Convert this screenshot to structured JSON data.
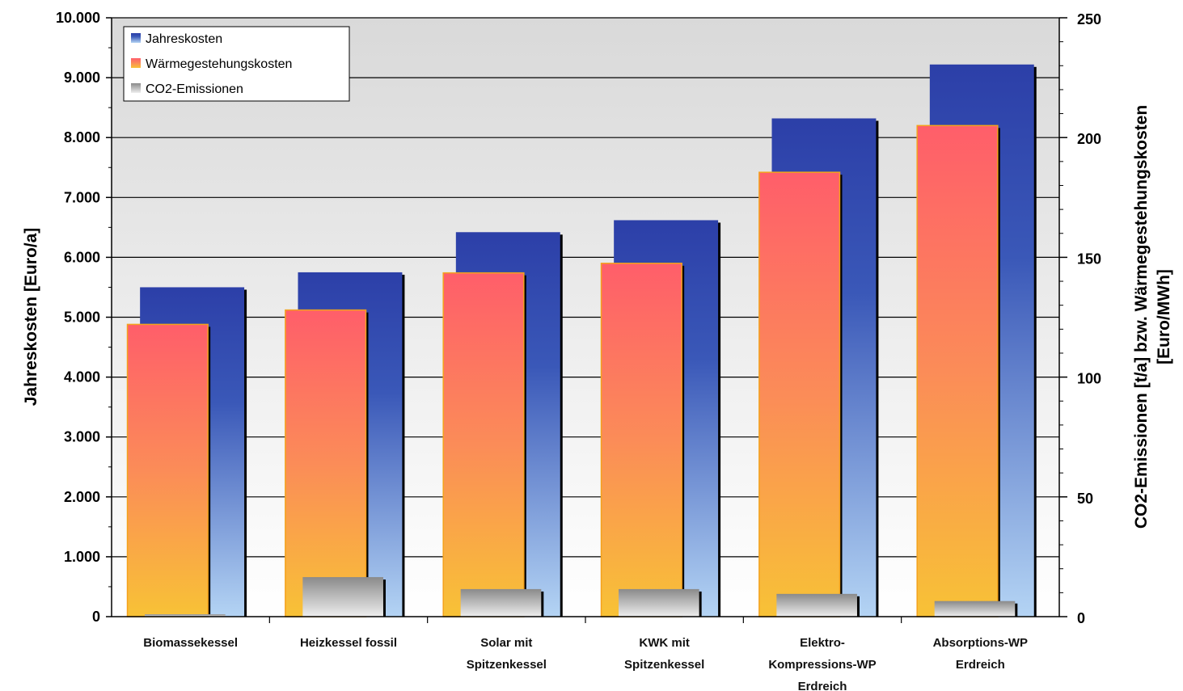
{
  "chart_data": {
    "type": "bar",
    "categories": [
      [
        "Biomassekessel"
      ],
      [
        "Heizkessel fossil"
      ],
      [
        "Solar mit",
        "Spitzenkessel"
      ],
      [
        "KWK mit",
        "Spitzenkessel"
      ],
      [
        "Elektro-",
        "Kompressions-WP",
        "Erdreich"
      ],
      [
        "Absorptions-WP",
        "Erdreich"
      ]
    ],
    "series": [
      {
        "name": "Jahreskosten",
        "axis": "left",
        "values": [
          5500,
          5750,
          6420,
          6620,
          8320,
          9220
        ],
        "color": "#2f47b4"
      },
      {
        "name": "Wärmegestehungskosten",
        "axis": "right",
        "values": [
          122,
          128,
          143.5,
          147.5,
          185.5,
          205
        ],
        "color": "#ff6060"
      },
      {
        "name": "CO2-Emissionen",
        "axis": "right",
        "values": [
          1,
          16.5,
          11.5,
          11.5,
          9.5,
          6.5
        ],
        "color": "#9a9a9a"
      }
    ],
    "ylabel": "Jahreskosten [Euro/a]",
    "y2label": [
      "CO2-Emissionen [t/a] bzw. Wärmegestehungskosten",
      "[Euro/MWh]"
    ],
    "ylim": [
      0,
      10000
    ],
    "y2lim": [
      0,
      250
    ],
    "yticks": [
      "0",
      "1.000",
      "2.000",
      "3.000",
      "4.000",
      "5.000",
      "6.000",
      "7.000",
      "8.000",
      "9.000",
      "10.000"
    ],
    "y2ticks": [
      "0",
      "50",
      "100",
      "150",
      "200",
      "250"
    ],
    "grid": true,
    "legend_position": "top-left"
  }
}
